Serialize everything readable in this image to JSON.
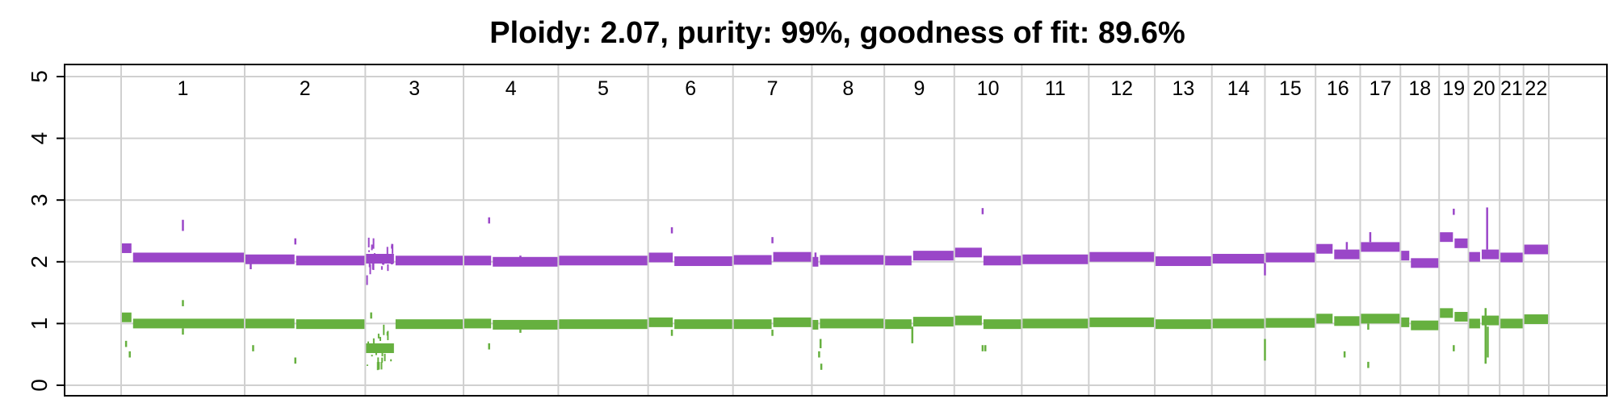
{
  "chart_data": {
    "type": "scatter",
    "title": "Ploidy: 2.07, purity: 99%, goodness of fit: 89.6%",
    "xlabel": "",
    "ylabel": "",
    "ylim": [
      0,
      5
    ],
    "yticks": [
      0,
      1,
      2,
      3,
      4,
      5
    ],
    "grid": true,
    "colors": {
      "total": "#9a46c8",
      "minor": "#66b03f",
      "grid": "#d0d0d0",
      "axis": "#000000"
    },
    "chromosomes": [
      "1",
      "2",
      "3",
      "4",
      "5",
      "6",
      "7",
      "8",
      "9",
      "10",
      "11",
      "12",
      "13",
      "14",
      "15",
      "16",
      "17",
      "18",
      "19",
      "20",
      "21",
      "22"
    ],
    "chrom_widths": [
      249,
      243,
      198,
      191,
      181,
      171,
      159,
      146,
      141,
      136,
      135,
      133,
      115,
      107,
      102,
      90,
      81,
      78,
      59,
      63,
      48,
      51
    ],
    "series": [
      {
        "key": "total",
        "segments": [
          {
            "chrom": "1",
            "levels": [
              {
                "start": 0.0,
                "end": 0.09,
                "value": 2.22
              },
              {
                "start": 0.09,
                "end": 1.0,
                "value": 2.07
              }
            ],
            "outliers": [
              {
                "pos": 0.5,
                "from": 2.5,
                "to": 2.68
              }
            ]
          },
          {
            "chrom": "2",
            "levels": [
              {
                "start": 0.0,
                "end": 0.42,
                "value": 2.04
              },
              {
                "start": 0.42,
                "end": 1.0,
                "value": 2.02
              }
            ],
            "outliers": [
              {
                "pos": 0.05,
                "from": 1.88,
                "to": 1.98
              },
              {
                "pos": 0.42,
                "from": 2.28,
                "to": 2.38
              }
            ]
          },
          {
            "chrom": "3",
            "levels": [
              {
                "start": 0.0,
                "end": 0.3,
                "value": 2.05,
                "noisy": true
              },
              {
                "start": 0.3,
                "end": 1.0,
                "value": 2.02
              }
            ],
            "outliers": []
          },
          {
            "chrom": "4",
            "levels": [
              {
                "start": 0.0,
                "end": 0.3,
                "value": 2.02
              },
              {
                "start": 0.3,
                "end": 1.0,
                "value": 2.0
              }
            ],
            "outliers": [
              {
                "pos": 0.27,
                "from": 2.62,
                "to": 2.72
              },
              {
                "pos": 0.6,
                "from": 2.0,
                "to": 2.1
              }
            ]
          },
          {
            "chrom": "5",
            "levels": [
              {
                "start": 0.0,
                "end": 1.0,
                "value": 2.02
              }
            ],
            "outliers": []
          },
          {
            "chrom": "6",
            "levels": [
              {
                "start": 0.0,
                "end": 0.3,
                "value": 2.07
              },
              {
                "start": 0.3,
                "end": 1.0,
                "value": 2.01
              }
            ],
            "outliers": [
              {
                "pos": 0.28,
                "from": 2.46,
                "to": 2.56
              }
            ]
          },
          {
            "chrom": "7",
            "levels": [
              {
                "start": 0.0,
                "end": 0.5,
                "value": 2.03
              },
              {
                "start": 0.5,
                "end": 1.0,
                "value": 2.08
              }
            ],
            "outliers": [
              {
                "pos": 0.5,
                "from": 2.3,
                "to": 2.4
              }
            ]
          },
          {
            "chrom": "8",
            "levels": [
              {
                "start": 0.0,
                "end": 0.1,
                "value": 2.0
              },
              {
                "start": 0.1,
                "end": 1.0,
                "value": 2.03
              }
            ],
            "outliers": [
              {
                "pos": 0.05,
                "from": 1.95,
                "to": 2.15
              }
            ]
          },
          {
            "chrom": "9",
            "levels": [
              {
                "start": 0.0,
                "end": 0.4,
                "value": 2.02
              },
              {
                "start": 0.4,
                "end": 1.0,
                "value": 2.1
              }
            ],
            "outliers": []
          },
          {
            "chrom": "10",
            "levels": [
              {
                "start": 0.0,
                "end": 0.42,
                "value": 2.15
              },
              {
                "start": 0.42,
                "end": 1.0,
                "value": 2.02
              }
            ],
            "outliers": [
              {
                "pos": 0.42,
                "from": 2.77,
                "to": 2.87
              }
            ]
          },
          {
            "chrom": "11",
            "levels": [
              {
                "start": 0.0,
                "end": 1.0,
                "value": 2.04
              }
            ],
            "outliers": []
          },
          {
            "chrom": "12",
            "levels": [
              {
                "start": 0.0,
                "end": 1.0,
                "value": 2.08
              }
            ],
            "outliers": []
          },
          {
            "chrom": "13",
            "levels": [
              {
                "start": 0.0,
                "end": 1.0,
                "value": 2.01
              }
            ],
            "outliers": []
          },
          {
            "chrom": "14",
            "levels": [
              {
                "start": 0.0,
                "end": 1.0,
                "value": 2.05
              }
            ],
            "outliers": []
          },
          {
            "chrom": "15",
            "levels": [
              {
                "start": 0.0,
                "end": 1.0,
                "value": 2.07
              }
            ],
            "outliers": [
              {
                "pos": 0.0,
                "from": 1.78,
                "to": 1.98
              }
            ]
          },
          {
            "chrom": "16",
            "levels": [
              {
                "start": 0.0,
                "end": 0.4,
                "value": 2.21
              },
              {
                "start": 0.4,
                "end": 1.0,
                "value": 2.12
              }
            ],
            "outliers": [
              {
                "pos": 0.7,
                "from": 2.2,
                "to": 2.32
              }
            ]
          },
          {
            "chrom": "17",
            "levels": [
              {
                "start": 0.0,
                "end": 1.0,
                "value": 2.24
              }
            ],
            "outliers": [
              {
                "pos": 0.25,
                "from": 2.32,
                "to": 2.48
              }
            ]
          },
          {
            "chrom": "18",
            "levels": [
              {
                "start": 0.0,
                "end": 0.25,
                "value": 2.1
              },
              {
                "start": 0.25,
                "end": 1.0,
                "value": 1.98
              }
            ],
            "outliers": []
          },
          {
            "chrom": "19",
            "levels": [
              {
                "start": 0.0,
                "end": 0.5,
                "value": 2.4
              },
              {
                "start": 0.5,
                "end": 1.0,
                "value": 2.3
              }
            ],
            "outliers": [
              {
                "pos": 0.5,
                "from": 2.76,
                "to": 2.86
              }
            ]
          },
          {
            "chrom": "20",
            "levels": [
              {
                "start": 0.0,
                "end": 0.4,
                "value": 2.08
              },
              {
                "start": 0.4,
                "end": 1.0,
                "value": 2.12
              }
            ],
            "outliers": [
              {
                "pos": 0.6,
                "from": 2.2,
                "to": 2.88
              }
            ]
          },
          {
            "chrom": "21",
            "levels": [
              {
                "start": 0.0,
                "end": 1.0,
                "value": 2.07
              }
            ],
            "outliers": []
          },
          {
            "chrom": "22",
            "levels": [
              {
                "start": 0.0,
                "end": 1.0,
                "value": 2.2
              }
            ],
            "outliers": []
          }
        ]
      },
      {
        "key": "minor",
        "segments": [
          {
            "chrom": "1",
            "levels": [
              {
                "start": 0.0,
                "end": 0.09,
                "value": 1.1
              },
              {
                "start": 0.09,
                "end": 1.0,
                "value": 1.0
              }
            ],
            "outliers": [
              {
                "pos": 0.04,
                "from": 0.62,
                "to": 0.72
              },
              {
                "pos": 0.07,
                "from": 0.45,
                "to": 0.55
              },
              {
                "pos": 0.5,
                "from": 1.28,
                "to": 1.38
              },
              {
                "pos": 0.5,
                "from": 0.82,
                "to": 0.92
              }
            ]
          },
          {
            "chrom": "2",
            "levels": [
              {
                "start": 0.0,
                "end": 0.42,
                "value": 1.0
              },
              {
                "start": 0.42,
                "end": 1.0,
                "value": 0.99
              }
            ],
            "outliers": [
              {
                "pos": 0.07,
                "from": 0.55,
                "to": 0.65
              },
              {
                "pos": 0.42,
                "from": 0.35,
                "to": 0.45
              }
            ]
          },
          {
            "chrom": "3",
            "levels": [
              {
                "start": 0.0,
                "end": 0.3,
                "value": 0.6,
                "noisy": true
              },
              {
                "start": 0.3,
                "end": 1.0,
                "value": 0.99
              }
            ],
            "outliers": [
              {
                "pos": 0.06,
                "from": 1.08,
                "to": 1.18
              }
            ]
          },
          {
            "chrom": "4",
            "levels": [
              {
                "start": 0.0,
                "end": 0.3,
                "value": 1.0
              },
              {
                "start": 0.3,
                "end": 1.0,
                "value": 0.98
              }
            ],
            "outliers": [
              {
                "pos": 0.27,
                "from": 0.58,
                "to": 0.68
              },
              {
                "pos": 0.6,
                "from": 0.85,
                "to": 0.95
              }
            ]
          },
          {
            "chrom": "5",
            "levels": [
              {
                "start": 0.0,
                "end": 1.0,
                "value": 0.99
              }
            ],
            "outliers": []
          },
          {
            "chrom": "6",
            "levels": [
              {
                "start": 0.0,
                "end": 0.3,
                "value": 1.02
              },
              {
                "start": 0.3,
                "end": 1.0,
                "value": 0.99
              }
            ],
            "outliers": [
              {
                "pos": 0.28,
                "from": 0.8,
                "to": 0.9
              }
            ]
          },
          {
            "chrom": "7",
            "levels": [
              {
                "start": 0.0,
                "end": 0.5,
                "value": 0.99
              },
              {
                "start": 0.5,
                "end": 1.0,
                "value": 1.02
              }
            ],
            "outliers": [
              {
                "pos": 0.5,
                "from": 0.8,
                "to": 0.9
              }
            ]
          },
          {
            "chrom": "8",
            "levels": [
              {
                "start": 0.0,
                "end": 0.1,
                "value": 0.98
              },
              {
                "start": 0.1,
                "end": 1.0,
                "value": 1.0
              }
            ],
            "outliers": [
              {
                "pos": 0.12,
                "from": 0.6,
                "to": 0.75
              },
              {
                "pos": 0.1,
                "from": 0.45,
                "to": 0.55
              },
              {
                "pos": 0.13,
                "from": 0.25,
                "to": 0.35
              }
            ]
          },
          {
            "chrom": "9",
            "levels": [
              {
                "start": 0.0,
                "end": 0.4,
                "value": 0.99
              },
              {
                "start": 0.4,
                "end": 1.0,
                "value": 1.03
              }
            ],
            "outliers": [
              {
                "pos": 0.4,
                "from": 0.68,
                "to": 0.95
              }
            ]
          },
          {
            "chrom": "10",
            "levels": [
              {
                "start": 0.0,
                "end": 0.42,
                "value": 1.05
              },
              {
                "start": 0.42,
                "end": 1.0,
                "value": 0.99
              }
            ],
            "outliers": [
              {
                "pos": 0.42,
                "from": 0.55,
                "to": 0.65
              },
              {
                "pos": 0.46,
                "from": 0.55,
                "to": 0.65
              }
            ]
          },
          {
            "chrom": "11",
            "levels": [
              {
                "start": 0.0,
                "end": 1.0,
                "value": 1.0
              }
            ],
            "outliers": []
          },
          {
            "chrom": "12",
            "levels": [
              {
                "start": 0.0,
                "end": 1.0,
                "value": 1.02
              }
            ],
            "outliers": []
          },
          {
            "chrom": "13",
            "levels": [
              {
                "start": 0.0,
                "end": 1.0,
                "value": 0.99
              }
            ],
            "outliers": []
          },
          {
            "chrom": "14",
            "levels": [
              {
                "start": 0.0,
                "end": 1.0,
                "value": 1.0
              }
            ],
            "outliers": []
          },
          {
            "chrom": "15",
            "levels": [
              {
                "start": 0.0,
                "end": 1.0,
                "value": 1.01
              }
            ],
            "outliers": [
              {
                "pos": 0.0,
                "from": 0.4,
                "to": 0.75
              }
            ]
          },
          {
            "chrom": "16",
            "levels": [
              {
                "start": 0.0,
                "end": 0.4,
                "value": 1.08
              },
              {
                "start": 0.4,
                "end": 1.0,
                "value": 1.04
              }
            ],
            "outliers": [
              {
                "pos": 0.65,
                "from": 0.45,
                "to": 0.55
              }
            ]
          },
          {
            "chrom": "17",
            "levels": [
              {
                "start": 0.0,
                "end": 1.0,
                "value": 1.08
              }
            ],
            "outliers": [
              {
                "pos": 0.2,
                "from": 0.28,
                "to": 0.38
              },
              {
                "pos": 0.2,
                "from": 0.9,
                "to": 1.0
              }
            ]
          },
          {
            "chrom": "18",
            "levels": [
              {
                "start": 0.0,
                "end": 0.25,
                "value": 1.02
              },
              {
                "start": 0.25,
                "end": 1.0,
                "value": 0.97
              }
            ],
            "outliers": []
          },
          {
            "chrom": "19",
            "levels": [
              {
                "start": 0.0,
                "end": 0.5,
                "value": 1.17
              },
              {
                "start": 0.5,
                "end": 1.0,
                "value": 1.11
              }
            ],
            "outliers": [
              {
                "pos": 0.5,
                "from": 0.55,
                "to": 0.65
              }
            ]
          },
          {
            "chrom": "20",
            "levels": [
              {
                "start": 0.0,
                "end": 0.4,
                "value": 1.0
              },
              {
                "start": 0.4,
                "end": 1.0,
                "value": 1.05
              }
            ],
            "outliers": [
              {
                "pos": 0.55,
                "from": 0.35,
                "to": 1.25
              },
              {
                "pos": 0.62,
                "from": 0.45,
                "to": 0.95
              }
            ]
          },
          {
            "chrom": "21",
            "levels": [
              {
                "start": 0.0,
                "end": 1.0,
                "value": 1.0
              }
            ],
            "outliers": []
          },
          {
            "chrom": "22",
            "levels": [
              {
                "start": 0.0,
                "end": 1.0,
                "value": 1.07
              }
            ],
            "outliers": []
          }
        ]
      }
    ]
  }
}
